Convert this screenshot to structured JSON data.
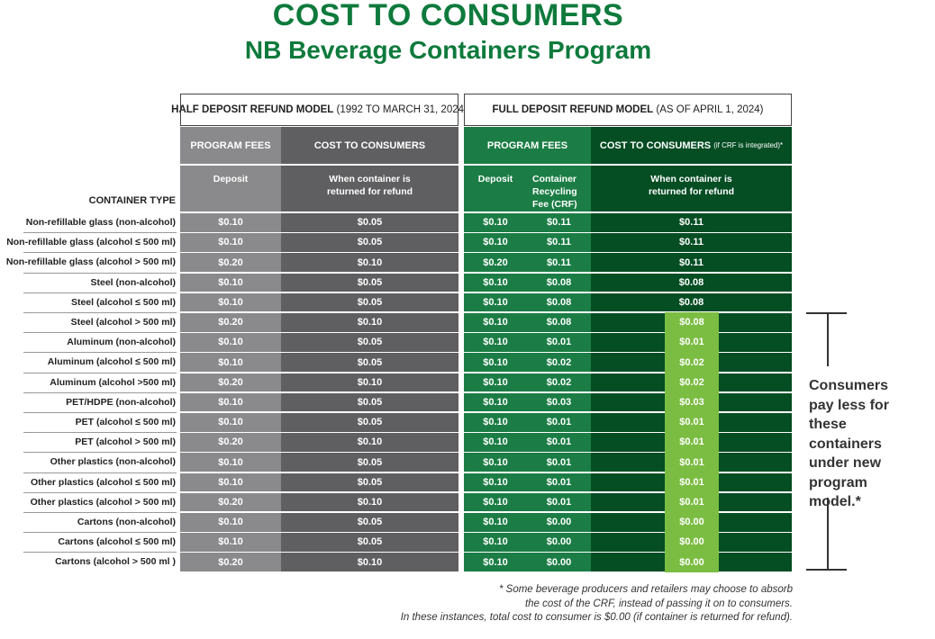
{
  "title": "COST TO CONSUMERS",
  "subtitle": "NB Beverage Containers Program",
  "half_model": {
    "label": "HALF DEPOSIT REFUND MODEL",
    "period": "(1992 TO MARCH 31, 2024)",
    "program_fees": "PROGRAM FEES",
    "cost": "COST TO CONSUMERS",
    "deposit": "Deposit",
    "when_returned": "When container is returned for refund"
  },
  "full_model": {
    "label": "FULL DEPOSIT REFUND MODEL",
    "period": "(AS OF APRIL 1, 2024)",
    "program_fees": "PROGRAM FEES",
    "cost": "COST TO CONSUMERS",
    "cost_note": "(if CRF is integrated)*",
    "deposit": "Deposit",
    "crf": "Container Recycling Fee (CRF)",
    "when_returned": "When container is returned for refund"
  },
  "container_type_header": "CONTAINER TYPE",
  "rows": [
    [
      "Non-refillable glass (non-alcohol)",
      "$0.10",
      "$0.05",
      "$0.10",
      "$0.11",
      "$0.11"
    ],
    [
      "Non-refillable glass (alcohol ≤ 500 ml)",
      "$0.10",
      "$0.05",
      "$0.10",
      "$0.11",
      "$0.11"
    ],
    [
      "Non-refillable glass (alcohol > 500 ml)",
      "$0.20",
      "$0.10",
      "$0.20",
      "$0.11",
      "$0.11"
    ],
    [
      "Steel (non-alcohol)",
      "$0.10",
      "$0.05",
      "$0.10",
      "$0.08",
      "$0.08"
    ],
    [
      "Steel (alcohol ≤ 500 ml)",
      "$0.10",
      "$0.05",
      "$0.10",
      "$0.08",
      "$0.08"
    ],
    [
      "Steel (alcohol > 500 ml)",
      "$0.20",
      "$0.10",
      "$0.10",
      "$0.08",
      "$0.08"
    ],
    [
      "Aluminum (non-alcohol)",
      "$0.10",
      "$0.05",
      "$0.10",
      "$0.01",
      "$0.01"
    ],
    [
      "Aluminum (alcohol ≤ 500 ml)",
      "$0.10",
      "$0.05",
      "$0.10",
      "$0.02",
      "$0.02"
    ],
    [
      "Aluminum (alcohol >500 ml)",
      "$0.20",
      "$0.10",
      "$0.10",
      "$0.02",
      "$0.02"
    ],
    [
      "PET/HDPE (non-alcohol)",
      "$0.10",
      "$0.05",
      "$0.10",
      "$0.03",
      "$0.03"
    ],
    [
      "PET (alcohol ≤ 500 ml)",
      "$0.10",
      "$0.05",
      "$0.10",
      "$0.01",
      "$0.01"
    ],
    [
      "PET (alcohol > 500 ml)",
      "$0.20",
      "$0.10",
      "$0.10",
      "$0.01",
      "$0.01"
    ],
    [
      "Other plastics (non-alcohol)",
      "$0.10",
      "$0.05",
      "$0.10",
      "$0.01",
      "$0.01"
    ],
    [
      "Other plastics (alcohol ≤ 500 ml)",
      "$0.10",
      "$0.05",
      "$0.10",
      "$0.01",
      "$0.01"
    ],
    [
      "Other plastics (alcohol > 500 ml)",
      "$0.20",
      "$0.10",
      "$0.10",
      "$0.01",
      "$0.01"
    ],
    [
      "Cartons (non-alcohol)",
      "$0.10",
      "$0.05",
      "$0.10",
      "$0.00",
      "$0.00"
    ],
    [
      "Cartons (alcohol ≤ 500 ml)",
      "$0.10",
      "$0.05",
      "$0.10",
      "$0.00",
      "$0.00"
    ],
    [
      "Cartons (alcohol > 500 ml )",
      "$0.20",
      "$0.10",
      "$0.10",
      "$0.00",
      "$0.00"
    ]
  ],
  "highlight_from_row": 5,
  "callout": "Consumers pay less for these containers under new program model.*",
  "footnote": [
    "* Some beverage producers and retailers may choose to absorb",
    "the cost of the CRF, instead of passing it on to consumers.",
    "In these instances, total cost to consumer is $0.00 (if container is returned for refund)."
  ],
  "colors": {
    "title": "#0e7a3c",
    "gray_light": "#8a8a8c",
    "gray_dark": "#5f5f61",
    "green": "#1b7d45",
    "green_dark": "#054d23",
    "highlight": "#7bbd42"
  }
}
